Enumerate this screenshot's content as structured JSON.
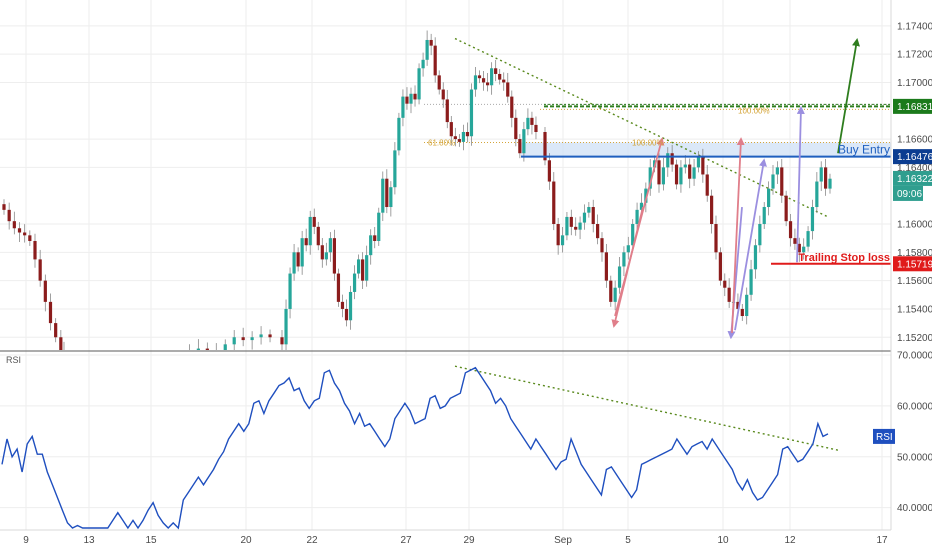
{
  "chart_data": [
    {
      "type": "candlestick",
      "price_axis": {
        "ticks": [
          "1.17400",
          "1.17200",
          "1.17000",
          "1.16600",
          "1.16400",
          "1.16000",
          "1.15800",
          "1.15600",
          "1.15400",
          "1.15200"
        ],
        "range": [
          1.1511,
          1.1754
        ]
      },
      "price_tags": [
        {
          "value": "1.16831",
          "color": "#1b7a1b"
        },
        {
          "value": "1.16476",
          "color": "#0b3d91"
        },
        {
          "value": "1.16322",
          "color": "#2f9e8f"
        },
        {
          "value": "09:06",
          "color": "#2f9e8f"
        },
        {
          "value": "1.15719",
          "color": "#e01b1b"
        }
      ],
      "levels": {
        "target": 1.16831,
        "target_upper": 1.16845,
        "buy_entry": 1.16476,
        "buy_zone_top": 1.16576,
        "trailing_stop": 1.15719
      },
      "annotations": {
        "buy_entry": "Buy Entry",
        "trailing_stop": "Trailing Stop loss",
        "fib_618": "61.80%",
        "fib_100_a": "100.00%",
        "fib_100_b": "100.00%"
      },
      "colors": {
        "up": "#26a69a",
        "down": "#8b1c1c",
        "buy": "#1f5fbf",
        "buy_zone": "#cfe0f5",
        "stop": "#e01b1b",
        "target": "#2e7d1e",
        "fib": "#d4a53a",
        "arrow_pink": "#e07e8a",
        "arrow_purple": "#9b8fe0"
      },
      "closes": [
        1.161,
        1.1602,
        1.1597,
        1.1594,
        1.1592,
        1.1588,
        1.1575,
        1.156,
        1.1545,
        1.153,
        1.152,
        1.151,
        1.1495,
        1.15,
        1.1492,
        1.1498,
        1.1495,
        1.149,
        1.1485,
        1.1492,
        1.1496,
        1.15,
        1.1502,
        1.1498,
        1.15,
        1.1505,
        1.151,
        1.1512,
        1.1508,
        1.151,
        1.1515,
        1.152,
        1.1518,
        1.152,
        1.1522,
        1.152,
        1.1515,
        1.154,
        1.1565,
        1.158,
        1.157,
        1.159,
        1.1585,
        1.1605,
        1.1598,
        1.1585,
        1.1575,
        1.158,
        1.159,
        1.1565,
        1.1545,
        1.154,
        1.1532,
        1.1552,
        1.1565,
        1.1575,
        1.156,
        1.1578,
        1.1592,
        1.1588,
        1.1608,
        1.1632,
        1.1612,
        1.1626,
        1.1652,
        1.1675,
        1.169,
        1.1685,
        1.1692,
        1.1688,
        1.171,
        1.1716,
        1.173,
        1.1726,
        1.1705,
        1.1695,
        1.1688,
        1.1672,
        1.1662,
        1.166,
        1.1658,
        1.1665,
        1.1662,
        1.1695,
        1.1705,
        1.1703,
        1.17,
        1.1698,
        1.171,
        1.1706,
        1.1702,
        1.17,
        1.169,
        1.1675,
        1.166,
        1.165,
        1.1667,
        1.1675,
        1.167,
        1.1665,
        1.1645,
        1.163,
        1.16,
        1.1585,
        1.1592,
        1.1605,
        1.1598,
        1.1596,
        1.1601,
        1.1608,
        1.1612,
        1.16,
        1.159,
        1.158,
        1.156,
        1.1545,
        1.1555,
        1.157,
        1.158,
        1.1585,
        1.16,
        1.161,
        1.1615,
        1.1625,
        1.164,
        1.1645,
        1.1628,
        1.164,
        1.165,
        1.1642,
        1.1628,
        1.164,
        1.1642,
        1.1632,
        1.164,
        1.1648,
        1.1635,
        1.162,
        1.16,
        1.158,
        1.156,
        1.1555,
        1.1545,
        1.1545,
        1.154,
        1.1535,
        1.155,
        1.1568,
        1.1585,
        1.16,
        1.1612,
        1.1625,
        1.1635,
        1.164,
        1.162,
        1.1602,
        1.159,
        1.1586,
        1.158,
        1.1584,
        1.1595,
        1.1612,
        1.163,
        1.164,
        1.1625,
        1.1632
      ]
    },
    {
      "type": "line",
      "title": "RSI",
      "series": [
        {
          "name": "RSI",
          "values": [
            50,
            52,
            49,
            51,
            47,
            53,
            55,
            52,
            49,
            46,
            44,
            42,
            40,
            38,
            36,
            35,
            33,
            34,
            35,
            36,
            37,
            35,
            36,
            38,
            37,
            36,
            38,
            37,
            39,
            38,
            40,
            38,
            37,
            36,
            38,
            37,
            40,
            42,
            44,
            46,
            45,
            47,
            49,
            48,
            50,
            53,
            55,
            57,
            56,
            58,
            59,
            60,
            58,
            61,
            63,
            65,
            66,
            64,
            62,
            63,
            61,
            60,
            62,
            63,
            65,
            66,
            64,
            63,
            61,
            60,
            58,
            57,
            55,
            56,
            55,
            54,
            53,
            55,
            56,
            58,
            60,
            59,
            57,
            58,
            59,
            60,
            61,
            59,
            60,
            62,
            63,
            64,
            65,
            66,
            67,
            66,
            65,
            64,
            62,
            60,
            59,
            57,
            56,
            55,
            54,
            53,
            52,
            51,
            50,
            49,
            48,
            50,
            51,
            52,
            50,
            48,
            47,
            46,
            45,
            44,
            46,
            47,
            46,
            45,
            44,
            43,
            45,
            47,
            48,
            49,
            50,
            51,
            52,
            53,
            52,
            51,
            50,
            52,
            53,
            54,
            53,
            52,
            51,
            50,
            49,
            48,
            46,
            45,
            44,
            42,
            41,
            42,
            44,
            46,
            48,
            50,
            51,
            50,
            49,
            50,
            52,
            54,
            55,
            53,
            54
          ]
        }
      ],
      "y_axis": {
        "ticks": [
          "70.0000",
          "60.0000",
          "50.0000",
          "40.0000"
        ],
        "range": [
          36,
          70
        ]
      },
      "value_tag": "RSI",
      "trendline_color": "#5a8a1e",
      "line_color": "#1f4fbf"
    }
  ],
  "x_axis": {
    "labels": [
      "9",
      "13",
      "15",
      "20",
      "22",
      "27",
      "29",
      "Sep",
      "5",
      "10",
      "12",
      "17"
    ]
  }
}
